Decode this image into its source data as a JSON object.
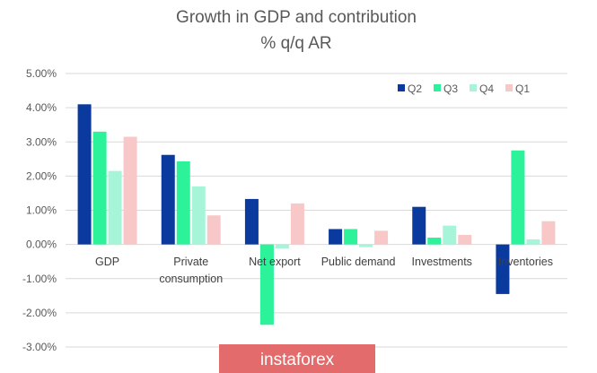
{
  "chart_data": {
    "type": "bar",
    "title": "Growth in GDP and contribution",
    "subtitle": "% q/q AR",
    "categories": [
      "GDP",
      "Private consumption",
      "Net export",
      "Public demand",
      "Investments",
      "Inventories"
    ],
    "category_lines": [
      [
        "GDP"
      ],
      [
        "Private",
        "consumption"
      ],
      [
        "Net export"
      ],
      [
        "Public demand"
      ],
      [
        "Investments"
      ],
      [
        "Inventories"
      ]
    ],
    "series": [
      {
        "name": "Q2",
        "color": "#0A3A9E",
        "values": [
          4.1,
          2.62,
          1.33,
          0.45,
          1.1,
          -1.45
        ]
      },
      {
        "name": "Q3",
        "color": "#2CF29A",
        "values": [
          3.3,
          2.43,
          -2.35,
          0.45,
          0.2,
          2.75
        ]
      },
      {
        "name": "Q4",
        "color": "#A7F5D8",
        "values": [
          2.15,
          1.7,
          -0.12,
          -0.08,
          0.55,
          0.15
        ]
      },
      {
        "name": "Q1",
        "color": "#F8C8C8",
        "values": [
          3.15,
          0.85,
          1.2,
          0.4,
          0.28,
          0.68
        ]
      }
    ],
    "ylim": [
      -3,
      5
    ],
    "yticks": [
      5,
      4,
      3,
      2,
      1,
      0,
      -1,
      -2,
      -3
    ],
    "ytick_labels": [
      "5.00%",
      "4.00%",
      "3.00%",
      "2.00%",
      "1.00%",
      "0.00%",
      "-1.00%",
      "-2.00%",
      "-3.00%"
    ],
    "grid": true,
    "legend_position": "top-right"
  },
  "watermark": {
    "text": "instaforex",
    "color": "#E36B6B"
  }
}
